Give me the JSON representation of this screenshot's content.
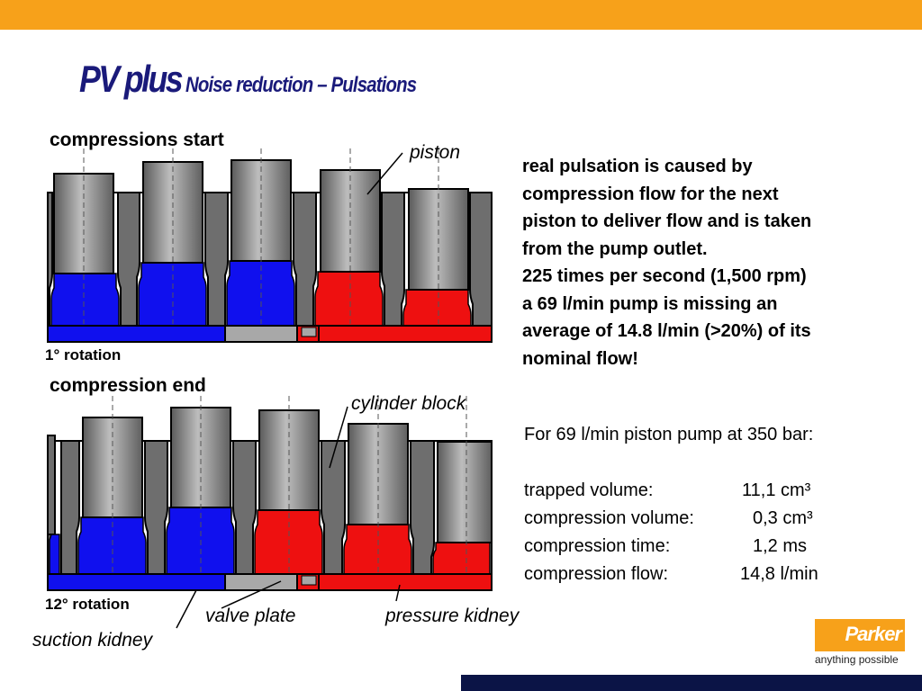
{
  "header": {
    "bar_color": "#f7a11a"
  },
  "title": {
    "main": "PV plus",
    "sub": "Noise reduction – Pulsations"
  },
  "diagram1": {
    "heading": "compressions start",
    "rotation_label": "1° rotation",
    "callout": "piston"
  },
  "diagram2": {
    "heading": "compression end",
    "rotation_label": "12° rotation",
    "callout_cylinder": "cylinder block"
  },
  "labels": {
    "valve_plate": "valve plate",
    "pressure_kidney": "pressure kidney",
    "suction_kidney": "suction kidney"
  },
  "explanation": {
    "lines": [
      "real pulsation is caused by",
      "compression flow for the next",
      "piston to deliver flow and is taken",
      "from the pump outlet.",
      "225 times per second (1,500 rpm)",
      "a 69 l/min pump is missing an",
      "average of 14.8 l/min (>20%) of its",
      "nominal flow!"
    ]
  },
  "specs": {
    "heading": "For 69 l/min piston pump at 350 bar:",
    "rows": [
      {
        "label": "trapped volume:",
        "value": "11,1 cm³"
      },
      {
        "label": "compression volume:",
        "value": "0,3 cm³"
      },
      {
        "label": "compression time:",
        "value": "1,2 ms"
      },
      {
        "label": "compression flow:",
        "value": "14,8 l/min"
      }
    ]
  },
  "logo": {
    "brand": "Parker",
    "tagline": "anything possible"
  },
  "colors": {
    "suction": "#1010ee",
    "pressure": "#ee1010",
    "block": "#6e6e6e",
    "plate": "#a8a8a8",
    "accent": "#f7a11a",
    "footer": "#0b1446"
  }
}
